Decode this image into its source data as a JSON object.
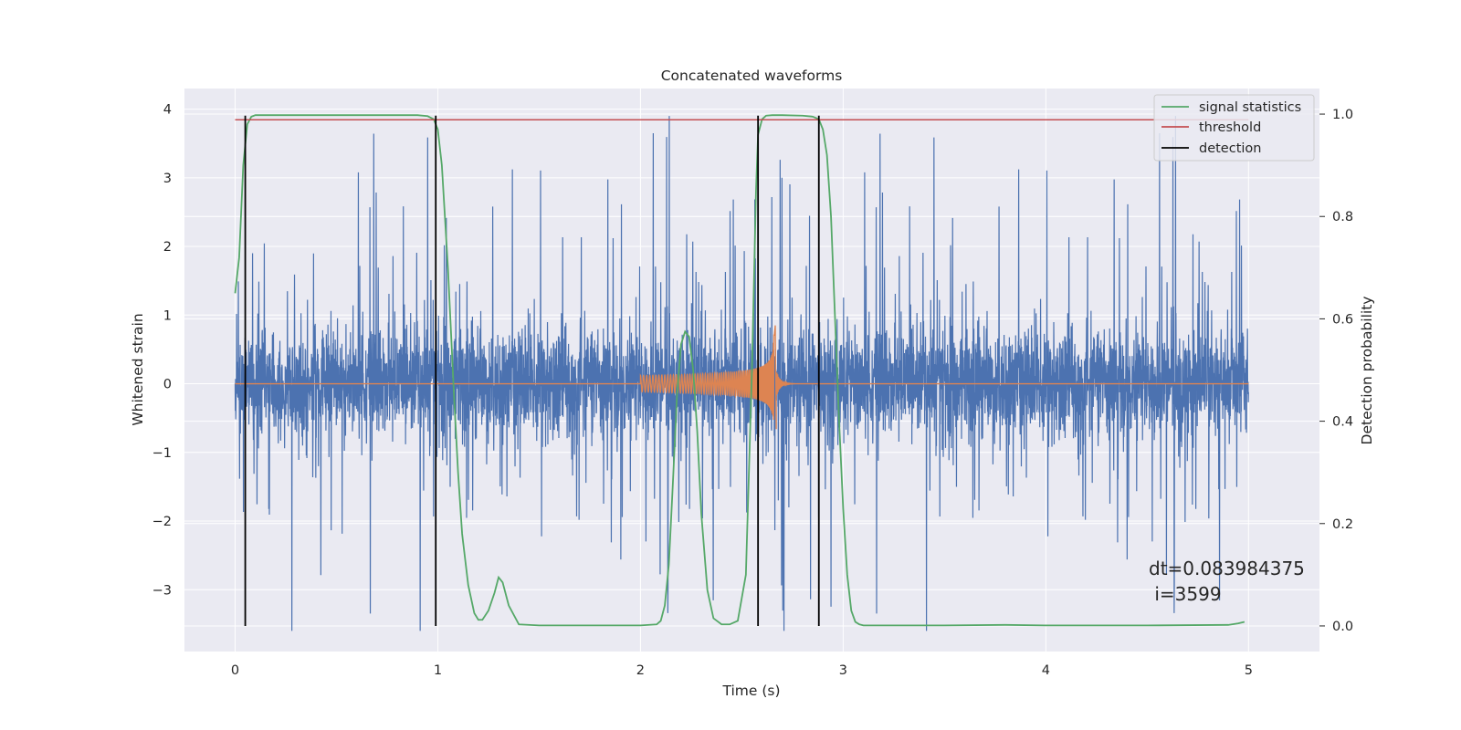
{
  "chart_data": {
    "type": "line",
    "title": "Concatenated waveforms",
    "xlabel": "Time (s)",
    "ylabel": "Whitened strain",
    "y2label": "Detection probability",
    "xlim": [
      -0.25,
      5.35
    ],
    "ylim": [
      -3.9,
      4.3
    ],
    "y2lim": [
      -0.05,
      1.05
    ],
    "x_ticks": [
      0,
      1,
      2,
      3,
      4,
      5
    ],
    "y_ticks": [
      -3,
      -2,
      -1,
      0,
      1,
      2,
      3,
      4
    ],
    "y2_ticks": [
      0.0,
      0.2,
      0.4,
      0.6,
      0.8,
      1.0
    ],
    "x_tick_labels": [
      "0",
      "1",
      "2",
      "3",
      "4",
      "5"
    ],
    "y_tick_labels": [
      "−3",
      "−2",
      "−1",
      "0",
      "1",
      "2",
      "3",
      "4"
    ],
    "y2_tick_labels": [
      "0.0",
      "0.2",
      "0.4",
      "0.6",
      "0.8",
      "1.0"
    ],
    "grid": true,
    "legend_position": "top-right",
    "colors": {
      "background": "#eaeaf2",
      "grid": "#ffffff",
      "strain": "#4c72b0",
      "injected": "#dd8452",
      "signal_statistics": "#55a868",
      "threshold": "#c44e52",
      "detection": "#000000"
    },
    "series": [
      {
        "name": "signal statistics",
        "axis": "right",
        "x": [
          0,
          0.02,
          0.04,
          0.06,
          0.08,
          0.1,
          0.15,
          0.3,
          0.5,
          0.7,
          0.9,
          0.95,
          0.98,
          1.0,
          1.02,
          1.05,
          1.08,
          1.1,
          1.12,
          1.15,
          1.18,
          1.2,
          1.22,
          1.25,
          1.28,
          1.3,
          1.32,
          1.35,
          1.4,
          1.5,
          1.7,
          1.9,
          2.0,
          2.08,
          2.1,
          2.12,
          2.14,
          2.16,
          2.18,
          2.2,
          2.22,
          2.24,
          2.26,
          2.28,
          2.3,
          2.33,
          2.36,
          2.4,
          2.44,
          2.48,
          2.52,
          2.55,
          2.57,
          2.58,
          2.6,
          2.62,
          2.65,
          2.7,
          2.8,
          2.85,
          2.88,
          2.9,
          2.92,
          2.94,
          2.96,
          2.98,
          3.0,
          3.02,
          3.04,
          3.06,
          3.08,
          3.1,
          3.2,
          3.5,
          3.8,
          4.0,
          4.5,
          4.9,
          4.95,
          4.98
        ],
        "values": [
          0.65,
          0.72,
          0.9,
          0.98,
          0.995,
          0.998,
          0.998,
          0.998,
          0.998,
          0.998,
          0.998,
          0.996,
          0.99,
          0.97,
          0.9,
          0.7,
          0.45,
          0.3,
          0.18,
          0.08,
          0.025,
          0.012,
          0.012,
          0.03,
          0.065,
          0.095,
          0.085,
          0.04,
          0.003,
          0.001,
          0.001,
          0.001,
          0.001,
          0.003,
          0.01,
          0.04,
          0.12,
          0.28,
          0.45,
          0.55,
          0.575,
          0.565,
          0.5,
          0.38,
          0.22,
          0.07,
          0.015,
          0.003,
          0.003,
          0.01,
          0.1,
          0.5,
          0.85,
          0.96,
          0.99,
          0.997,
          0.998,
          0.998,
          0.997,
          0.995,
          0.99,
          0.97,
          0.92,
          0.8,
          0.6,
          0.4,
          0.23,
          0.1,
          0.03,
          0.008,
          0.003,
          0.001,
          0.001,
          0.001,
          0.002,
          0.001,
          0.001,
          0.002,
          0.005,
          0.008
        ]
      },
      {
        "name": "threshold",
        "axis": "right",
        "x": [
          0,
          5
        ],
        "values": [
          0.989,
          0.989
        ]
      },
      {
        "name": "detection",
        "axis": "right",
        "x_positions": [
          0.05,
          0.99,
          2.58,
          2.88
        ],
        "y_range": [
          0.0,
          0.997
        ]
      }
    ],
    "strain": {
      "axis": "left",
      "x_range": [
        0,
        5
      ],
      "typical_range": [
        -0.9,
        0.9
      ],
      "spike_range": [
        -3.6,
        3.9
      ]
    },
    "injected_waveform": {
      "axis": "left",
      "chirp_start": 2.0,
      "merger": 2.66,
      "peak_positive": 0.85,
      "peak_negative": -0.66
    },
    "annotation": "dt=0.083984375\n i=3599"
  }
}
